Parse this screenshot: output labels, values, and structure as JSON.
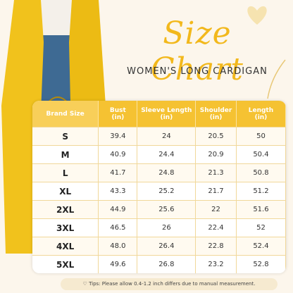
{
  "header": {
    "title": "Size Chart",
    "subtitle": "WOMEN'S LONG CARDIGAN"
  },
  "table": {
    "columns": [
      [
        "Brand Size"
      ],
      [
        "Bust",
        "(in)"
      ],
      [
        "Sleeve Length",
        "(in)"
      ],
      [
        "Shoulder",
        "(in)"
      ],
      [
        "Length",
        "(in)"
      ]
    ],
    "rows": [
      [
        "S",
        "39.4",
        "24",
        "20.5",
        "50"
      ],
      [
        "M",
        "40.9",
        "24.4",
        "20.9",
        "50.4"
      ],
      [
        "L",
        "41.7",
        "24.8",
        "21.3",
        "50.8"
      ],
      [
        "XL",
        "43.3",
        "25.2",
        "21.7",
        "51.2"
      ],
      [
        "2XL",
        "44.9",
        "25.6",
        "22",
        "51.6"
      ],
      [
        "3XL",
        "46.5",
        "26",
        "22.4",
        "52"
      ],
      [
        "4XL",
        "48.0",
        "26.4",
        "22.8",
        "52.4"
      ],
      [
        "5XL",
        "49.6",
        "26.8",
        "23.2",
        "52.8"
      ]
    ]
  },
  "footer": {
    "tips": "Tips: Please allow 0.4-1.2 inch differs due to manual measurement."
  }
}
